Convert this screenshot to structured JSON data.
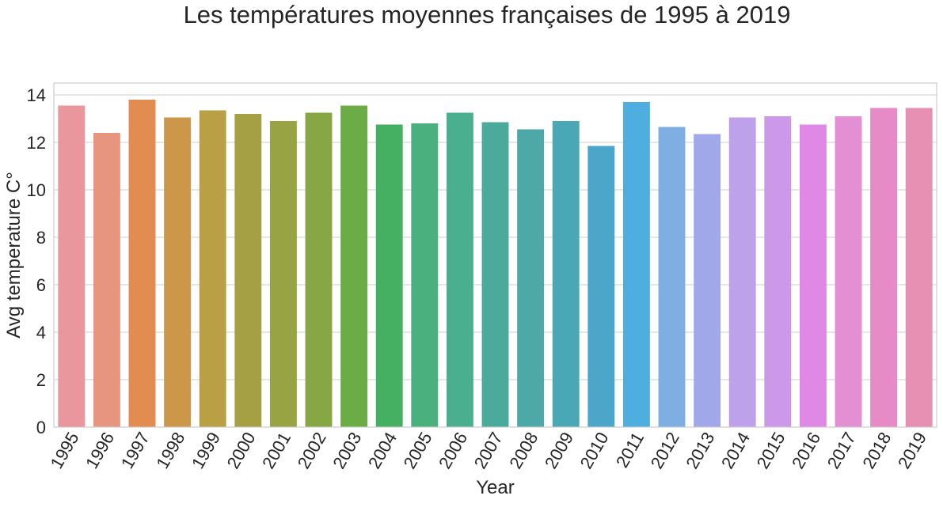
{
  "chart_data": {
    "type": "bar",
    "title": "Les températures moyennes françaises de 1995 à 2019",
    "xlabel": "Year",
    "ylabel": "Avg temperature C°",
    "categories": [
      "1995",
      "1996",
      "1997",
      "1998",
      "1999",
      "2000",
      "2001",
      "2002",
      "2003",
      "2004",
      "2005",
      "2006",
      "2007",
      "2008",
      "2009",
      "2010",
      "2011",
      "2012",
      "2013",
      "2014",
      "2015",
      "2016",
      "2017",
      "2018",
      "2019"
    ],
    "values": [
      13.55,
      12.4,
      13.8,
      13.05,
      13.35,
      13.2,
      12.9,
      13.25,
      13.55,
      12.75,
      12.8,
      13.25,
      12.85,
      12.55,
      12.9,
      11.85,
      13.7,
      12.65,
      12.35,
      13.05,
      13.1,
      12.75,
      13.1,
      13.45,
      13.45
    ],
    "ylim": [
      0,
      14.5
    ],
    "yticks": [
      0,
      2,
      4,
      6,
      8,
      10,
      12,
      14
    ],
    "grid": "horizontal",
    "colors": [
      "#e9969c",
      "#e8957f",
      "#e38c52",
      "#cc9748",
      "#b9a044",
      "#a6a044",
      "#98a443",
      "#87a744",
      "#6bac47",
      "#45b062",
      "#49b07e",
      "#4aaf8e",
      "#4caa9c",
      "#4ca9a8",
      "#4aa8b6",
      "#4ba6c9",
      "#4faee0",
      "#7eaee2",
      "#a0a8e9",
      "#bda2eb",
      "#cc98e9",
      "#e088e6",
      "#e48ed3",
      "#e68bc5",
      "#e890b3"
    ]
  }
}
